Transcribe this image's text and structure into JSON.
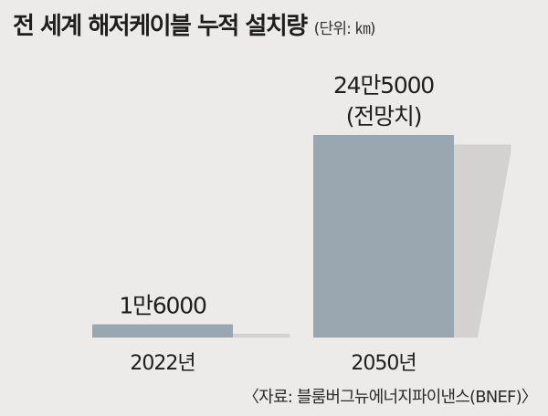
{
  "header": {
    "title": "전 세계 해저케이블 누적 설치량",
    "unit": "(단위: ㎞)"
  },
  "chart_data": {
    "type": "bar",
    "categories": [
      "2022년",
      "2050년"
    ],
    "values": [
      16000,
      245000
    ],
    "data_labels": [
      [
        "1만6000"
      ],
      [
        "24만5000",
        "(전망치)"
      ]
    ],
    "ylim": [
      0,
      245000
    ],
    "grid": false,
    "title": "전 세계 해저케이블 누적 설치량",
    "unit": "(단위: ㎞)",
    "source": "〈자료: 블룸버그뉴에너지파이낸스(BNEF)〉"
  },
  "colors": {
    "background": "#ecebea",
    "bar": "#9aa7b1",
    "shadow": "#d3d2d1",
    "text": "#222222"
  },
  "footer": {
    "source": "〈자료: 블룸버그뉴에너지파이낸스(BNEF)〉"
  }
}
